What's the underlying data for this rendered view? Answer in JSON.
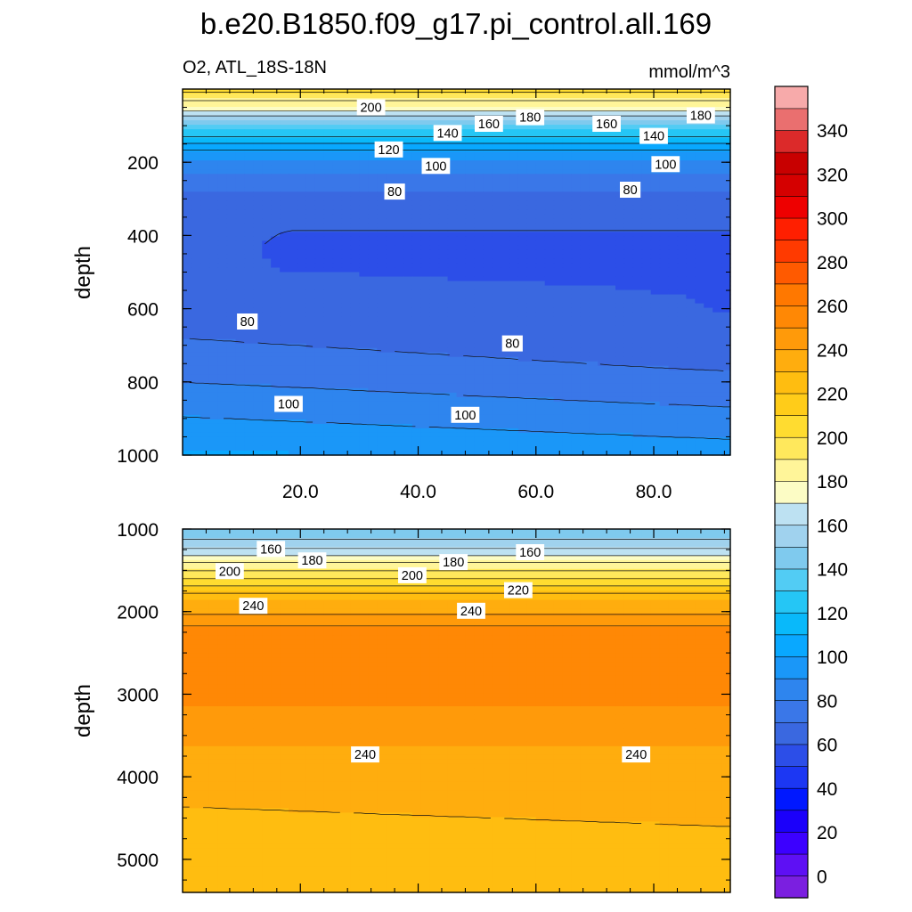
{
  "title": "b.e20.B1850.f09_g17.pi_control.all.169",
  "colors": {
    "palette": [
      "#7b1fe0",
      "#5e10f4",
      "#3c00ff",
      "#1b00fa",
      "#0018ff",
      "#1c37f3",
      "#2c4ee8",
      "#3a68e0",
      "#3a77e8",
      "#2e85ee",
      "#1a97f8",
      "#09a8ff",
      "#09b9fa",
      "#25c6f5",
      "#52ccf4",
      "#7fcaee",
      "#a0d2ee",
      "#bde1f2",
      "#fcfcc5",
      "#fff599",
      "#ffe85c",
      "#ffdc30",
      "#ffcc19",
      "#ffbd10",
      "#ffad0e",
      "#ff9a0a",
      "#ff8805",
      "#ff7800",
      "#ff5a00",
      "#ff3a00",
      "#ff1f00",
      "#ee0000",
      "#d50000",
      "#c80000",
      "#dc2a2a",
      "#ea6f6f",
      "#f7aaaa"
    ]
  },
  "colorbar": {
    "labels": [
      "0",
      "20",
      "40",
      "60",
      "80",
      "100",
      "120",
      "140",
      "160",
      "180",
      "200",
      "220",
      "240",
      "260",
      "280",
      "300",
      "320",
      "340"
    ]
  },
  "chart_data": [
    {
      "type": "heatmap",
      "subtitle_left": "O2, ATL_18S-18N",
      "subtitle_right": "mmol/m^3",
      "ylabel": "depth",
      "xlabel": "",
      "x_range": [
        0,
        93
      ],
      "y_range": [
        0,
        1000
      ],
      "y_inverted": true,
      "x_ticks": [
        "20.0",
        "40.0",
        "60.0",
        "80.0"
      ],
      "y_ticks": [
        "200",
        "400",
        "600",
        "800",
        "1000"
      ],
      "contour_labels": [
        {
          "text": "200",
          "x": 32,
          "y": 50
        },
        {
          "text": "160",
          "x": 52,
          "y": 95
        },
        {
          "text": "180",
          "x": 59,
          "y": 77
        },
        {
          "text": "160",
          "x": 72,
          "y": 95
        },
        {
          "text": "140",
          "x": 45,
          "y": 120
        },
        {
          "text": "140",
          "x": 80,
          "y": 128
        },
        {
          "text": "180",
          "x": 88,
          "y": 72
        },
        {
          "text": "120",
          "x": 35,
          "y": 165
        },
        {
          "text": "100",
          "x": 43,
          "y": 210
        },
        {
          "text": "100",
          "x": 82,
          "y": 205
        },
        {
          "text": "80",
          "x": 36,
          "y": 280
        },
        {
          "text": "80",
          "x": 76,
          "y": 275
        },
        {
          "text": "80",
          "x": 11,
          "y": 635
        },
        {
          "text": "80",
          "x": 56,
          "y": 695
        },
        {
          "text": "100",
          "x": 18,
          "y": 860
        },
        {
          "text": "100",
          "x": 48,
          "y": 890
        }
      ]
    },
    {
      "type": "heatmap",
      "ylabel": "depth",
      "xlabel": "",
      "x_range": [
        0,
        93
      ],
      "y_range": [
        1000,
        5400
      ],
      "y_inverted": true,
      "y_ticks": [
        "1000",
        "2000",
        "3000",
        "4000",
        "5000"
      ],
      "contour_labels": [
        {
          "text": "160",
          "x": 15,
          "y": 1240
        },
        {
          "text": "180",
          "x": 22,
          "y": 1380
        },
        {
          "text": "200",
          "x": 8,
          "y": 1510
        },
        {
          "text": "200",
          "x": 39,
          "y": 1560
        },
        {
          "text": "180",
          "x": 46,
          "y": 1400
        },
        {
          "text": "160",
          "x": 59,
          "y": 1280
        },
        {
          "text": "220",
          "x": 57,
          "y": 1740
        },
        {
          "text": "240",
          "x": 12,
          "y": 1930
        },
        {
          "text": "240",
          "x": 49,
          "y": 1990
        },
        {
          "text": "240",
          "x": 31,
          "y": 3730
        },
        {
          "text": "240",
          "x": 77,
          "y": 3730
        }
      ]
    }
  ]
}
